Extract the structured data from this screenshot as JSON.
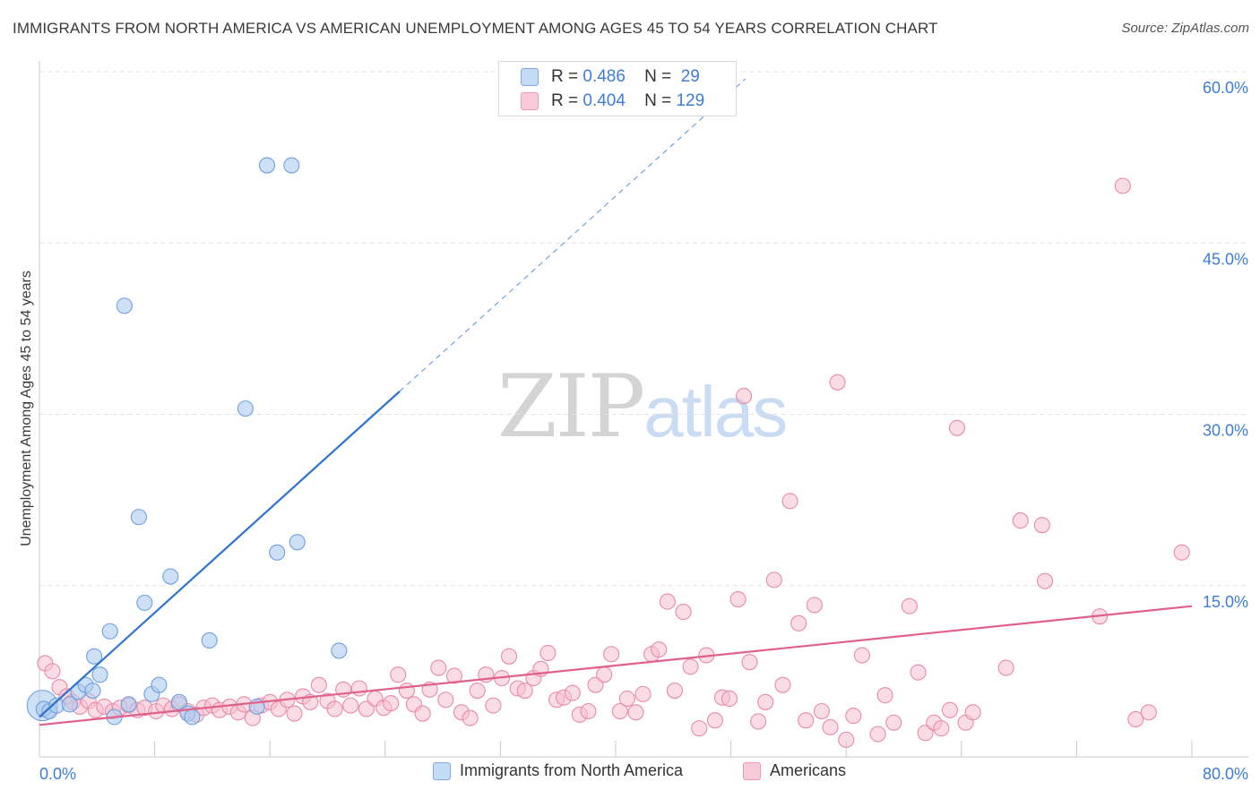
{
  "title": "IMMIGRANTS FROM NORTH AMERICA VS AMERICAN UNEMPLOYMENT AMONG AGES 45 TO 54 YEARS CORRELATION CHART",
  "source": "Source: ZipAtlas.com",
  "watermark": {
    "zip": "ZIP",
    "atlas": "atlas"
  },
  "legend": {
    "r_label": "R =",
    "n_label": "N =",
    "rows": [
      {
        "r": "0.486",
        "n": "29"
      },
      {
        "r": "0.404",
        "n": "129"
      }
    ]
  },
  "colors": {
    "blue_fill": "#aecbf0",
    "blue_stroke": "#6f9fdc",
    "blue_line": "#2f73d0",
    "pink_fill": "#f6bfd0",
    "pink_stroke": "#e98aa8",
    "pink_line": "#e0608a",
    "grid": "#e3e3e3",
    "axis_text": "#3d7dd8"
  },
  "chart_data": {
    "type": "scatter",
    "title": "IMMIGRANTS FROM NORTH AMERICA VS AMERICAN UNEMPLOYMENT AMONG AGES 45 TO 54 YEARS CORRELATION CHART",
    "xlabel": "",
    "ylabel": "Unemployment Among Ages 45 to 54 years",
    "xlim": [
      0,
      80
    ],
    "ylim": [
      0,
      60
    ],
    "x_tick_labels": [
      "0.0%",
      "80.0%"
    ],
    "y_tick_labels": [
      "15.0%",
      "30.0%",
      "45.0%",
      "60.0%"
    ],
    "y_ticks": [
      15,
      30,
      45,
      60
    ],
    "x_minor_ticks": [
      8,
      16,
      24,
      32,
      40,
      48,
      56,
      64,
      72,
      80
    ],
    "series": [
      {
        "name": "Immigrants from North America",
        "color": "blue",
        "r": 0.486,
        "n": 29,
        "trend": {
          "x0": 0,
          "y0": 3.5,
          "x1": 25,
          "y1": 32.0,
          "dash_to_x": 49
        },
        "points": [
          [
            0.3,
            4.2
          ],
          [
            0.7,
            4.0
          ],
          [
            1.2,
            4.5
          ],
          [
            2.1,
            4.6
          ],
          [
            2.7,
            5.7
          ],
          [
            3.2,
            6.3
          ],
          [
            3.7,
            5.8
          ],
          [
            3.8,
            8.8
          ],
          [
            4.2,
            7.2
          ],
          [
            4.9,
            11.0
          ],
          [
            5.2,
            3.5
          ],
          [
            5.9,
            39.5
          ],
          [
            6.2,
            4.6
          ],
          [
            6.9,
            21.0
          ],
          [
            7.3,
            13.5
          ],
          [
            7.8,
            5.5
          ],
          [
            8.3,
            6.3
          ],
          [
            9.1,
            15.8
          ],
          [
            9.7,
            4.8
          ],
          [
            10.3,
            3.8
          ],
          [
            10.6,
            3.5
          ],
          [
            11.8,
            10.2
          ],
          [
            14.3,
            30.5
          ],
          [
            15.1,
            4.4
          ],
          [
            15.8,
            51.8
          ],
          [
            16.5,
            17.9
          ],
          [
            17.5,
            51.8
          ],
          [
            17.9,
            18.8
          ],
          [
            20.8,
            9.3
          ]
        ],
        "large_point": [
          0.2,
          4.5
        ]
      },
      {
        "name": "Americans",
        "color": "pink",
        "r": 0.404,
        "n": 129,
        "trend": {
          "x0": 0,
          "y0": 2.8,
          "x1": 80,
          "y1": 13.2
        },
        "points": [
          [
            0.4,
            8.2
          ],
          [
            0.9,
            7.5
          ],
          [
            1.4,
            6.1
          ],
          [
            1.9,
            5.3
          ],
          [
            2.3,
            4.8
          ],
          [
            2.8,
            4.4
          ],
          [
            3.4,
            4.9
          ],
          [
            3.9,
            4.1
          ],
          [
            4.5,
            4.4
          ],
          [
            5.1,
            4.0
          ],
          [
            5.6,
            4.3
          ],
          [
            6.2,
            4.5
          ],
          [
            6.8,
            4.1
          ],
          [
            7.3,
            4.3
          ],
          [
            8.1,
            4.0
          ],
          [
            8.6,
            4.5
          ],
          [
            9.2,
            4.2
          ],
          [
            9.7,
            4.6
          ],
          [
            10.3,
            4.0
          ],
          [
            10.9,
            3.7
          ],
          [
            11.4,
            4.3
          ],
          [
            12.0,
            4.5
          ],
          [
            12.5,
            4.1
          ],
          [
            13.2,
            4.4
          ],
          [
            13.8,
            3.9
          ],
          [
            14.2,
            4.6
          ],
          [
            14.8,
            3.4
          ],
          [
            15.4,
            4.5
          ],
          [
            16.0,
            4.8
          ],
          [
            16.6,
            4.2
          ],
          [
            17.2,
            5.0
          ],
          [
            17.7,
            3.8
          ],
          [
            18.3,
            5.3
          ],
          [
            18.8,
            4.8
          ],
          [
            19.4,
            6.3
          ],
          [
            20.0,
            4.9
          ],
          [
            20.5,
            4.2
          ],
          [
            21.1,
            5.9
          ],
          [
            21.6,
            4.5
          ],
          [
            22.2,
            6.0
          ],
          [
            22.7,
            4.2
          ],
          [
            23.3,
            5.1
          ],
          [
            23.9,
            4.3
          ],
          [
            24.4,
            4.7
          ],
          [
            24.9,
            7.2
          ],
          [
            25.5,
            5.8
          ],
          [
            26.0,
            4.6
          ],
          [
            26.6,
            3.8
          ],
          [
            27.1,
            5.9
          ],
          [
            27.7,
            7.8
          ],
          [
            28.2,
            5.0
          ],
          [
            28.8,
            7.1
          ],
          [
            29.3,
            3.9
          ],
          [
            29.9,
            3.4
          ],
          [
            30.4,
            5.8
          ],
          [
            31.0,
            7.2
          ],
          [
            31.5,
            4.5
          ],
          [
            32.1,
            6.9
          ],
          [
            32.6,
            8.8
          ],
          [
            33.2,
            6.0
          ],
          [
            33.7,
            5.8
          ],
          [
            34.3,
            6.9
          ],
          [
            34.8,
            7.7
          ],
          [
            35.3,
            9.1
          ],
          [
            35.9,
            5.0
          ],
          [
            36.4,
            5.2
          ],
          [
            37.0,
            5.6
          ],
          [
            37.5,
            3.7
          ],
          [
            38.1,
            4.0
          ],
          [
            38.6,
            6.3
          ],
          [
            39.2,
            7.2
          ],
          [
            39.7,
            9.0
          ],
          [
            40.3,
            4.0
          ],
          [
            40.8,
            5.1
          ],
          [
            41.4,
            3.9
          ],
          [
            41.9,
            5.5
          ],
          [
            42.5,
            9.0
          ],
          [
            43.0,
            9.4
          ],
          [
            43.6,
            13.6
          ],
          [
            44.1,
            5.8
          ],
          [
            44.7,
            12.7
          ],
          [
            45.2,
            7.9
          ],
          [
            45.8,
            2.5
          ],
          [
            46.3,
            8.9
          ],
          [
            46.9,
            3.2
          ],
          [
            47.4,
            5.2
          ],
          [
            47.9,
            5.1
          ],
          [
            48.5,
            13.8
          ],
          [
            48.9,
            31.6
          ],
          [
            49.3,
            8.3
          ],
          [
            49.9,
            3.1
          ],
          [
            50.4,
            4.8
          ],
          [
            51.0,
            15.5
          ],
          [
            51.6,
            6.3
          ],
          [
            52.1,
            22.4
          ],
          [
            52.7,
            11.7
          ],
          [
            53.2,
            3.2
          ],
          [
            53.8,
            13.3
          ],
          [
            54.3,
            4.0
          ],
          [
            54.9,
            2.6
          ],
          [
            55.4,
            32.8
          ],
          [
            56.0,
            1.5
          ],
          [
            56.5,
            3.6
          ],
          [
            57.1,
            8.9
          ],
          [
            58.2,
            2.0
          ],
          [
            58.7,
            5.4
          ],
          [
            59.3,
            3.0
          ],
          [
            60.4,
            13.2
          ],
          [
            61.0,
            7.4
          ],
          [
            61.5,
            2.1
          ],
          [
            62.1,
            3.0
          ],
          [
            62.6,
            2.5
          ],
          [
            63.2,
            4.1
          ],
          [
            63.7,
            28.8
          ],
          [
            64.3,
            3.0
          ],
          [
            64.8,
            3.9
          ],
          [
            67.1,
            7.8
          ],
          [
            68.1,
            20.7
          ],
          [
            69.6,
            20.3
          ],
          [
            69.8,
            15.4
          ],
          [
            73.6,
            12.3
          ],
          [
            75.2,
            50.0
          ],
          [
            76.1,
            3.3
          ],
          [
            77.0,
            3.9
          ],
          [
            79.3,
            17.9
          ]
        ]
      }
    ]
  },
  "legend_bottom": [
    {
      "label": "Immigrants from North America"
    },
    {
      "label": "Americans"
    }
  ]
}
